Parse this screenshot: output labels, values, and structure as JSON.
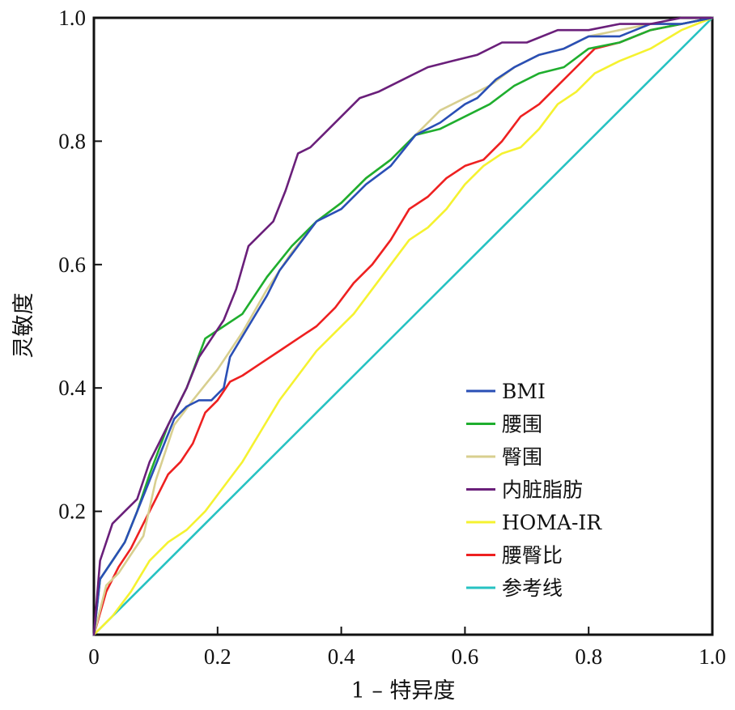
{
  "chart_data": {
    "type": "line",
    "xlabel": "1 – 特异度",
    "ylabel": "灵敏度",
    "xlim": [
      0,
      1.0
    ],
    "ylim": [
      0,
      1.0
    ],
    "x_ticks": [
      "0",
      "0.2",
      "0.4",
      "0.6",
      "0.8",
      "1.0"
    ],
    "y_ticks": [
      "0.2",
      "0.4",
      "0.6",
      "0.8",
      "1.0"
    ],
    "grid": false,
    "legend_position": "bottom-right",
    "series": [
      {
        "name": "BMI",
        "color": "#2a4fb5",
        "x": [
          0,
          0.01,
          0.03,
          0.05,
          0.07,
          0.09,
          0.11,
          0.13,
          0.15,
          0.17,
          0.19,
          0.21,
          0.22,
          0.25,
          0.28,
          0.3,
          0.33,
          0.36,
          0.4,
          0.44,
          0.48,
          0.52,
          0.56,
          0.6,
          0.62,
          0.65,
          0.68,
          0.72,
          0.76,
          0.8,
          0.85,
          0.9,
          0.95,
          1.0
        ],
        "y": [
          0,
          0.09,
          0.12,
          0.15,
          0.2,
          0.25,
          0.3,
          0.35,
          0.37,
          0.38,
          0.38,
          0.4,
          0.45,
          0.5,
          0.55,
          0.59,
          0.63,
          0.67,
          0.69,
          0.73,
          0.76,
          0.81,
          0.83,
          0.86,
          0.87,
          0.9,
          0.92,
          0.94,
          0.95,
          0.97,
          0.97,
          0.99,
          0.99,
          1.0
        ]
      },
      {
        "name": "腰围",
        "color": "#1fae2e",
        "x": [
          0,
          0.01,
          0.03,
          0.05,
          0.07,
          0.09,
          0.12,
          0.15,
          0.18,
          0.21,
          0.24,
          0.28,
          0.32,
          0.36,
          0.4,
          0.44,
          0.48,
          0.52,
          0.56,
          0.6,
          0.64,
          0.68,
          0.72,
          0.76,
          0.8,
          0.85,
          0.9,
          0.95,
          1.0
        ],
        "y": [
          0,
          0.09,
          0.12,
          0.15,
          0.2,
          0.26,
          0.34,
          0.4,
          0.48,
          0.5,
          0.52,
          0.58,
          0.63,
          0.67,
          0.7,
          0.74,
          0.77,
          0.81,
          0.82,
          0.84,
          0.86,
          0.89,
          0.91,
          0.92,
          0.95,
          0.96,
          0.98,
          0.99,
          1.0
        ]
      },
      {
        "name": "臀围",
        "color": "#d8cf8f",
        "x": [
          0,
          0.02,
          0.04,
          0.06,
          0.08,
          0.1,
          0.13,
          0.16,
          0.2,
          0.24,
          0.28,
          0.32,
          0.36,
          0.4,
          0.44,
          0.48,
          0.52,
          0.56,
          0.6,
          0.64,
          0.68,
          0.72,
          0.76,
          0.8,
          0.85,
          0.9,
          0.95,
          1.0
        ],
        "y": [
          0,
          0.08,
          0.1,
          0.13,
          0.16,
          0.25,
          0.34,
          0.38,
          0.43,
          0.49,
          0.56,
          0.62,
          0.67,
          0.7,
          0.74,
          0.77,
          0.81,
          0.85,
          0.87,
          0.89,
          0.92,
          0.94,
          0.95,
          0.97,
          0.98,
          0.99,
          0.99,
          1.0
        ]
      },
      {
        "name": "内脏脂肪",
        "color": "#6a1f7a",
        "x": [
          0,
          0.01,
          0.03,
          0.05,
          0.07,
          0.09,
          0.11,
          0.13,
          0.15,
          0.17,
          0.19,
          0.21,
          0.23,
          0.25,
          0.27,
          0.29,
          0.31,
          0.33,
          0.35,
          0.37,
          0.4,
          0.43,
          0.46,
          0.5,
          0.54,
          0.58,
          0.62,
          0.66,
          0.7,
          0.75,
          0.8,
          0.85,
          0.9,
          0.95,
          1.0
        ],
        "y": [
          0,
          0.12,
          0.18,
          0.2,
          0.22,
          0.28,
          0.32,
          0.36,
          0.4,
          0.45,
          0.48,
          0.51,
          0.56,
          0.63,
          0.65,
          0.67,
          0.72,
          0.78,
          0.79,
          0.81,
          0.84,
          0.87,
          0.88,
          0.9,
          0.92,
          0.93,
          0.94,
          0.96,
          0.96,
          0.98,
          0.98,
          0.99,
          0.99,
          1.0,
          1.0
        ]
      },
      {
        "name": "HOMA-IR",
        "color": "#f5f230",
        "x": [
          0,
          0.03,
          0.06,
          0.09,
          0.12,
          0.15,
          0.18,
          0.21,
          0.24,
          0.27,
          0.3,
          0.33,
          0.36,
          0.39,
          0.42,
          0.45,
          0.48,
          0.51,
          0.54,
          0.57,
          0.6,
          0.63,
          0.66,
          0.69,
          0.72,
          0.75,
          0.78,
          0.81,
          0.85,
          0.9,
          0.95,
          1.0
        ],
        "y": [
          0,
          0.03,
          0.07,
          0.12,
          0.15,
          0.17,
          0.2,
          0.24,
          0.28,
          0.33,
          0.38,
          0.42,
          0.46,
          0.49,
          0.52,
          0.56,
          0.6,
          0.64,
          0.66,
          0.69,
          0.73,
          0.76,
          0.78,
          0.79,
          0.82,
          0.86,
          0.88,
          0.91,
          0.93,
          0.95,
          0.98,
          1.0
        ]
      },
      {
        "name": "腰臀比",
        "color": "#ee2020",
        "x": [
          0,
          0.02,
          0.04,
          0.06,
          0.08,
          0.1,
          0.12,
          0.14,
          0.16,
          0.18,
          0.2,
          0.22,
          0.24,
          0.27,
          0.3,
          0.33,
          0.36,
          0.39,
          0.42,
          0.45,
          0.48,
          0.51,
          0.54,
          0.57,
          0.6,
          0.63,
          0.66,
          0.69,
          0.72,
          0.75,
          0.78,
          0.81,
          0.85,
          0.9,
          0.95,
          1.0
        ],
        "y": [
          0,
          0.07,
          0.11,
          0.14,
          0.18,
          0.22,
          0.26,
          0.28,
          0.31,
          0.36,
          0.38,
          0.41,
          0.42,
          0.44,
          0.46,
          0.48,
          0.5,
          0.53,
          0.57,
          0.6,
          0.64,
          0.69,
          0.71,
          0.74,
          0.76,
          0.77,
          0.8,
          0.84,
          0.86,
          0.89,
          0.92,
          0.95,
          0.96,
          0.98,
          0.99,
          1.0
        ]
      },
      {
        "name": "参考线",
        "color": "#26c2c2",
        "x": [
          0,
          1.0
        ],
        "y": [
          0,
          1.0
        ]
      }
    ]
  }
}
